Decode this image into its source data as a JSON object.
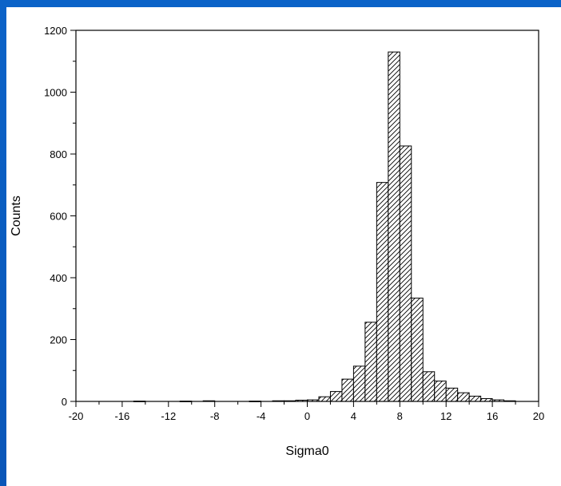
{
  "colors": {
    "background_blue": "#0a5ec2",
    "panel": "#ffffff",
    "ink": "#000000"
  },
  "chart_data": {
    "type": "bar",
    "title": "",
    "xlabel": "Sigma0",
    "ylabel": "Counts",
    "xlim": [
      -20,
      20
    ],
    "ylim": [
      0,
      1200
    ],
    "grid": false,
    "bar_fill": "diagonal-hatch",
    "bin_width": 1,
    "x_ticks": [
      -20,
      -16,
      -12,
      -8,
      -4,
      0,
      4,
      8,
      12,
      16,
      20
    ],
    "y_ticks": [
      0,
      200,
      400,
      600,
      800,
      1000,
      1200
    ],
    "bins": [
      {
        "x0": -15,
        "x1": -14,
        "count": 1
      },
      {
        "x0": -11,
        "x1": -10,
        "count": 1
      },
      {
        "x0": -9,
        "x1": -8,
        "count": 2
      },
      {
        "x0": -5,
        "x1": -4,
        "count": 1
      },
      {
        "x0": -3,
        "x1": -2,
        "count": 2
      },
      {
        "x0": -2,
        "x1": -1,
        "count": 2
      },
      {
        "x0": -1,
        "x1": 0,
        "count": 4
      },
      {
        "x0": 0,
        "x1": 1,
        "count": 5
      },
      {
        "x0": 1,
        "x1": 2,
        "count": 15
      },
      {
        "x0": 2,
        "x1": 3,
        "count": 32
      },
      {
        "x0": 3,
        "x1": 4,
        "count": 72
      },
      {
        "x0": 4,
        "x1": 5,
        "count": 114
      },
      {
        "x0": 5,
        "x1": 6,
        "count": 256
      },
      {
        "x0": 6,
        "x1": 7,
        "count": 708
      },
      {
        "x0": 7,
        "x1": 8,
        "count": 1130
      },
      {
        "x0": 8,
        "x1": 9,
        "count": 826
      },
      {
        "x0": 9,
        "x1": 10,
        "count": 334
      },
      {
        "x0": 10,
        "x1": 11,
        "count": 96
      },
      {
        "x0": 11,
        "x1": 12,
        "count": 66
      },
      {
        "x0": 12,
        "x1": 13,
        "count": 43
      },
      {
        "x0": 13,
        "x1": 14,
        "count": 28
      },
      {
        "x0": 14,
        "x1": 15,
        "count": 17
      },
      {
        "x0": 15,
        "x1": 16,
        "count": 9
      },
      {
        "x0": 16,
        "x1": 17,
        "count": 5
      },
      {
        "x0": 17,
        "x1": 18,
        "count": 2
      }
    ]
  }
}
